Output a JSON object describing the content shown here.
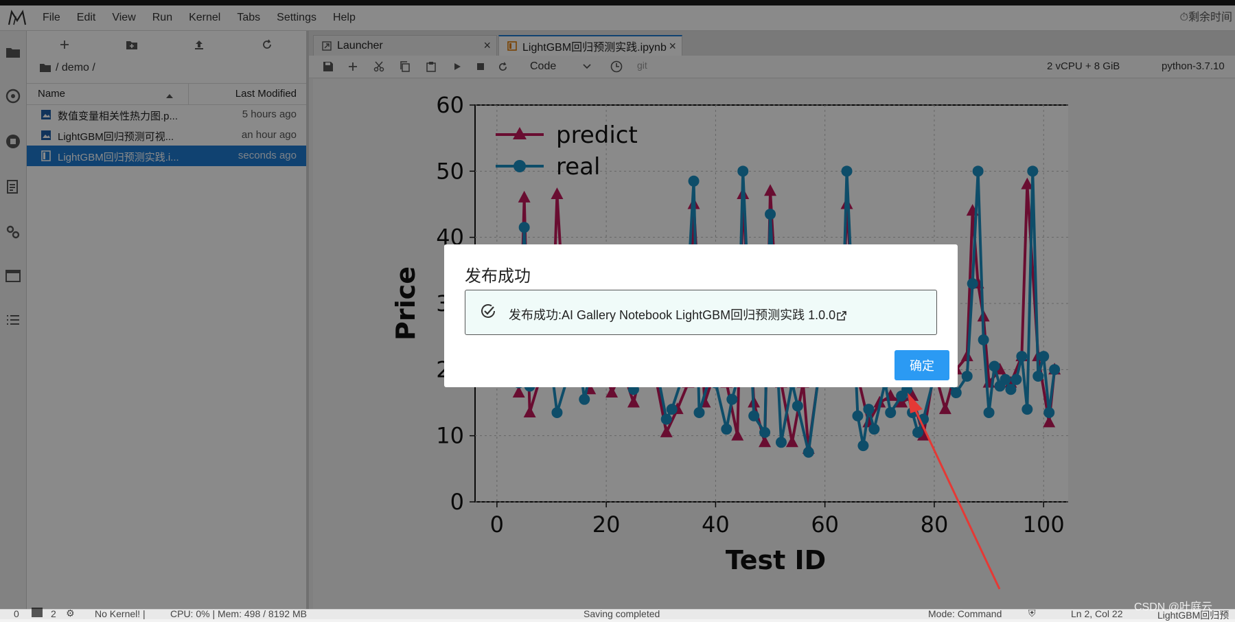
{
  "menu": {
    "items": [
      "File",
      "Edit",
      "View",
      "Run",
      "Kernel",
      "Tabs",
      "Settings",
      "Help"
    ],
    "timer": "剩余时间"
  },
  "filebrowser": {
    "breadcrumb": "/ demo /",
    "col_name": "Name",
    "col_modified": "Last Modified",
    "files": [
      {
        "name": "数值变量相关性热力图.p...",
        "modified": "5 hours ago"
      },
      {
        "name": "LightGBM回归预测可视...",
        "modified": "an hour ago"
      },
      {
        "name": "LightGBM回归预测实践.i...",
        "modified": "seconds ago"
      }
    ]
  },
  "tabs": [
    {
      "label": "Launcher"
    },
    {
      "label": "LightGBM回归预测实践.ipynb"
    }
  ],
  "toolbar": {
    "cell_type": "Code",
    "git": "git",
    "resources": "2 vCPU + 8 GiB",
    "kernel": "python-3.7.10"
  },
  "chart_data": {
    "type": "line",
    "xlabel": "Test ID",
    "ylabel": "Price",
    "xlim": [
      -4,
      106
    ],
    "ylim": [
      0,
      60
    ],
    "xticks": [
      0,
      20,
      40,
      60,
      80,
      100
    ],
    "yticks": [
      0,
      10,
      20,
      30,
      40,
      50,
      60
    ],
    "grid": true,
    "legend": "top-left",
    "series": [
      {
        "name": "predict",
        "color": "#c2185b",
        "marker": "triangle",
        "x": [
          4,
          5,
          6,
          8,
          10,
          11,
          13,
          15,
          17,
          19,
          21,
          23,
          25,
          27,
          29,
          31,
          33,
          35,
          36,
          38,
          40,
          42,
          44,
          45,
          47,
          49,
          50,
          52,
          54,
          56,
          57,
          59,
          61,
          63,
          64,
          66,
          68,
          70,
          72,
          74,
          76,
          78,
          80,
          82,
          84,
          86,
          87,
          88,
          89,
          90,
          92,
          94,
          96,
          97,
          99,
          101,
          102
        ],
        "y": [
          16.5,
          46,
          13.5,
          19,
          22,
          46.5,
          19,
          22,
          17,
          23,
          16.5,
          20,
          15,
          22,
          19,
          10.5,
          14,
          18,
          45,
          15,
          20,
          18,
          10,
          46.5,
          15,
          9,
          47,
          18,
          9,
          18,
          8,
          20,
          19,
          21,
          45,
          19,
          12,
          15,
          16,
          15,
          16,
          10,
          20,
          14,
          20,
          22,
          44,
          33,
          28,
          18,
          20,
          18,
          22,
          48,
          22,
          12,
          20
        ]
      },
      {
        "name": "real",
        "color": "#1a8fc2",
        "marker": "circle",
        "x": [
          4,
          5,
          6,
          8,
          10,
          11,
          13,
          15,
          16,
          18,
          20,
          22,
          24,
          25,
          27,
          29,
          31,
          32,
          34,
          36,
          37,
          39,
          40,
          42,
          43,
          44,
          45,
          47,
          49,
          50,
          52,
          54,
          55,
          57,
          59,
          61,
          63,
          64,
          66,
          67,
          68,
          69,
          71,
          72,
          74,
          75,
          76,
          77,
          78,
          80,
          82,
          84,
          86,
          87,
          88,
          89,
          90,
          91,
          92,
          93,
          94,
          95,
          96,
          97,
          98,
          99,
          100,
          101,
          102
        ],
        "y": [
          18,
          41.5,
          17.5,
          21,
          20,
          13.5,
          19,
          22,
          15.5,
          23,
          20,
          19,
          21,
          17,
          20,
          21,
          12.5,
          14,
          19,
          48.5,
          13.5,
          19,
          18,
          11,
          15.5,
          18.5,
          50,
          13,
          10.5,
          43.5,
          9,
          18,
          14.5,
          7.5,
          20,
          19,
          21,
          50,
          13,
          8.5,
          14,
          11,
          18,
          13.5,
          16,
          17,
          13.5,
          10.5,
          12.5,
          19,
          18.5,
          16.5,
          19,
          33,
          50,
          24.5,
          13.5,
          20.5,
          17.5,
          18.5,
          17,
          18.5,
          22,
          14,
          50,
          19,
          22,
          13.5,
          20
        ]
      }
    ]
  },
  "dialog": {
    "title": "发布成功",
    "message": "发布成功:AI Gallery Notebook LightGBM回归预测实践 1.0.0",
    "ok_label": "确定"
  },
  "status": {
    "left_a": "0",
    "left_b": "2",
    "kernel_state": "No Kernel! |",
    "cpu_mem": "CPU: 0% | Mem: 498 / 8192 MB",
    "saving": "Saving completed",
    "mode": "Mode: Command",
    "position": "Ln 2, Col 22",
    "right_file": "LightGBM回归预"
  },
  "watermark": "CSDN @叶庭云",
  "colors": {
    "accent": "#1f7bd1",
    "ok_button": "#2b9af3",
    "arrow": "#e53935",
    "predict": "#c2185b",
    "real": "#1a8fc2"
  }
}
